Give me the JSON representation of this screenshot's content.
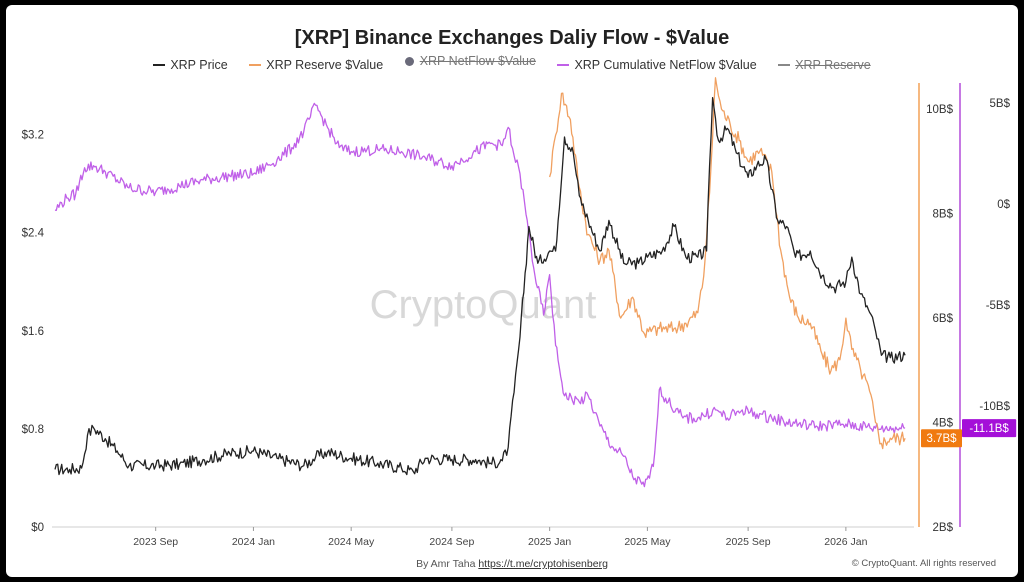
{
  "chart_data": {
    "type": "line",
    "title": "[XRP] Binance Exchanges Daliy Flow - $Value",
    "watermark": "CryptoQuant",
    "legend": [
      {
        "name": "XRP Price",
        "color": "#222222",
        "marker": "line",
        "hidden": false
      },
      {
        "name": "XRP Reserve $Value",
        "color": "#f0a060",
        "marker": "line",
        "hidden": false
      },
      {
        "name": "XRP NetFlow $Value",
        "color": "#6a6a7a",
        "marker": "dot",
        "hidden": true
      },
      {
        "name": "XRP Cumulative NetFlow $Value",
        "color": "#c060e8",
        "marker": "line",
        "hidden": false
      },
      {
        "name": "XRP Reserve",
        "color": "#888888",
        "marker": "line",
        "hidden": true
      }
    ],
    "x_tick_labels": [
      "2023 Sep",
      "2024 Jan",
      "2024 May",
      "2024 Sep",
      "2025 Jan",
      "2025 May",
      "2025 Sep",
      "2026 Jan"
    ],
    "x_tick_positions": [
      2023.67,
      2024.0,
      2024.33,
      2024.67,
      2025.0,
      2025.33,
      2025.67,
      2026.0
    ],
    "xlim": [
      2023.32,
      2026.23
    ],
    "axes": {
      "price": {
        "side": "left",
        "ylim": [
          0,
          3.62
        ],
        "ticks": [
          0,
          0.8,
          1.6,
          2.4,
          3.2
        ],
        "tick_labels": [
          "$0",
          "$0.8",
          "$1.6",
          "$2.4",
          "$3.2"
        ]
      },
      "reserve": {
        "side": "right",
        "color": "#f08a2c",
        "ylim": [
          2,
          10.5
        ],
        "ticks": [
          2,
          4,
          6,
          8,
          10
        ],
        "tick_labels": [
          "2B$",
          "4B$",
          "6B$",
          "8B$",
          "10B$"
        ],
        "last_value_label": "3.7B$"
      },
      "cumulative": {
        "side": "right-outer",
        "color": "#a020d0",
        "ylim": [
          -16,
          6
        ],
        "ticks": [
          -10,
          -5,
          0,
          5
        ],
        "tick_labels": [
          "-10B$",
          "-5B$",
          "0$",
          "5B$"
        ],
        "last_value_label": "-11.1B$"
      }
    },
    "series": [
      {
        "name": "XRP Price",
        "axis": "price",
        "color": "#222222",
        "points": [
          [
            2023.33,
            0.47
          ],
          [
            2023.38,
            0.47
          ],
          [
            2023.42,
            0.48
          ],
          [
            2023.44,
            0.75
          ],
          [
            2023.46,
            0.81
          ],
          [
            2023.5,
            0.72
          ],
          [
            2023.54,
            0.62
          ],
          [
            2023.58,
            0.5
          ],
          [
            2023.67,
            0.5
          ],
          [
            2023.75,
            0.51
          ],
          [
            2023.83,
            0.55
          ],
          [
            2023.92,
            0.6
          ],
          [
            2024.0,
            0.62
          ],
          [
            2024.08,
            0.56
          ],
          [
            2024.17,
            0.5
          ],
          [
            2024.21,
            0.57
          ],
          [
            2024.25,
            0.61
          ],
          [
            2024.33,
            0.56
          ],
          [
            2024.42,
            0.52
          ],
          [
            2024.5,
            0.48
          ],
          [
            2024.54,
            0.45
          ],
          [
            2024.58,
            0.56
          ],
          [
            2024.67,
            0.55
          ],
          [
            2024.75,
            0.55
          ],
          [
            2024.8,
            0.52
          ],
          [
            2024.84,
            0.54
          ],
          [
            2024.86,
            0.65
          ],
          [
            2024.88,
            1.1
          ],
          [
            2024.9,
            1.55
          ],
          [
            2024.93,
            2.45
          ],
          [
            2024.96,
            2.15
          ],
          [
            2025.0,
            2.25
          ],
          [
            2025.02,
            2.25
          ],
          [
            2025.05,
            3.18
          ],
          [
            2025.08,
            3.05
          ],
          [
            2025.1,
            2.7
          ],
          [
            2025.13,
            2.5
          ],
          [
            2025.17,
            2.25
          ],
          [
            2025.2,
            2.5
          ],
          [
            2025.25,
            2.15
          ],
          [
            2025.3,
            2.15
          ],
          [
            2025.33,
            2.2
          ],
          [
            2025.38,
            2.25
          ],
          [
            2025.42,
            2.45
          ],
          [
            2025.46,
            2.2
          ],
          [
            2025.5,
            2.2
          ],
          [
            2025.53,
            2.25
          ],
          [
            2025.54,
            2.95
          ],
          [
            2025.55,
            3.5
          ],
          [
            2025.57,
            3.15
          ],
          [
            2025.6,
            3.25
          ],
          [
            2025.63,
            3.05
          ],
          [
            2025.67,
            2.85
          ],
          [
            2025.7,
            2.95
          ],
          [
            2025.73,
            3.0
          ],
          [
            2025.77,
            2.5
          ],
          [
            2025.8,
            2.45
          ],
          [
            2025.83,
            2.2
          ],
          [
            2025.88,
            2.25
          ],
          [
            2025.92,
            2.05
          ],
          [
            2025.96,
            1.95
          ],
          [
            2026.0,
            2.0
          ],
          [
            2026.02,
            2.2
          ],
          [
            2026.05,
            1.9
          ],
          [
            2026.08,
            1.75
          ],
          [
            2026.1,
            1.6
          ],
          [
            2026.12,
            1.4
          ],
          [
            2026.15,
            1.38
          ],
          [
            2026.2,
            1.4
          ]
        ]
      },
      {
        "name": "XRP Reserve $Value",
        "axis": "reserve",
        "color": "#f0a060",
        "points": [
          [
            2025.0,
            8.7
          ],
          [
            2025.02,
            9.5
          ],
          [
            2025.04,
            10.3
          ],
          [
            2025.07,
            9.8
          ],
          [
            2025.1,
            8.5
          ],
          [
            2025.13,
            7.6
          ],
          [
            2025.17,
            7.1
          ],
          [
            2025.2,
            7.3
          ],
          [
            2025.24,
            6.0
          ],
          [
            2025.28,
            6.4
          ],
          [
            2025.32,
            5.7
          ],
          [
            2025.37,
            5.8
          ],
          [
            2025.42,
            5.8
          ],
          [
            2025.46,
            5.9
          ],
          [
            2025.5,
            6.1
          ],
          [
            2025.52,
            6.8
          ],
          [
            2025.54,
            8.4
          ],
          [
            2025.56,
            10.6
          ],
          [
            2025.58,
            10.0
          ],
          [
            2025.61,
            9.7
          ],
          [
            2025.64,
            9.4
          ],
          [
            2025.67,
            9.0
          ],
          [
            2025.71,
            9.2
          ],
          [
            2025.75,
            8.8
          ],
          [
            2025.78,
            7.3
          ],
          [
            2025.81,
            6.4
          ],
          [
            2025.84,
            6.0
          ],
          [
            2025.88,
            5.9
          ],
          [
            2025.92,
            5.3
          ],
          [
            2025.95,
            5.0
          ],
          [
            2025.98,
            5.2
          ],
          [
            2026.0,
            6.0
          ],
          [
            2026.02,
            5.4
          ],
          [
            2026.05,
            5.0
          ],
          [
            2026.08,
            4.6
          ],
          [
            2026.1,
            4.0
          ],
          [
            2026.12,
            3.6
          ],
          [
            2026.15,
            3.7
          ],
          [
            2026.2,
            3.7
          ]
        ]
      },
      {
        "name": "XRP Cumulative NetFlow $Value",
        "axis": "cumulative",
        "color": "#c060e8",
        "points": [
          [
            2023.33,
            -0.3
          ],
          [
            2023.37,
            0.3
          ],
          [
            2023.4,
            0.5
          ],
          [
            2023.43,
            1.8
          ],
          [
            2023.46,
            1.9
          ],
          [
            2023.5,
            1.6
          ],
          [
            2023.58,
            0.8
          ],
          [
            2023.67,
            0.6
          ],
          [
            2023.75,
            0.9
          ],
          [
            2023.83,
            1.2
          ],
          [
            2023.92,
            1.4
          ],
          [
            2024.0,
            1.5
          ],
          [
            2024.08,
            2.2
          ],
          [
            2024.13,
            2.8
          ],
          [
            2024.17,
            3.6
          ],
          [
            2024.21,
            4.9
          ],
          [
            2024.25,
            3.8
          ],
          [
            2024.29,
            2.8
          ],
          [
            2024.33,
            2.6
          ],
          [
            2024.42,
            2.7
          ],
          [
            2024.5,
            2.6
          ],
          [
            2024.58,
            2.3
          ],
          [
            2024.67,
            1.9
          ],
          [
            2024.75,
            2.6
          ],
          [
            2024.8,
            3.0
          ],
          [
            2024.84,
            2.9
          ],
          [
            2024.86,
            3.8
          ],
          [
            2024.88,
            2.4
          ],
          [
            2024.9,
            1.5
          ],
          [
            2024.92,
            -0.5
          ],
          [
            2024.95,
            -3.5
          ],
          [
            2024.98,
            -5.5
          ],
          [
            2025.0,
            -3.5
          ],
          [
            2025.02,
            -7.0
          ],
          [
            2025.05,
            -9.5
          ],
          [
            2025.1,
            -9.8
          ],
          [
            2025.13,
            -9.5
          ],
          [
            2025.17,
            -11.0
          ],
          [
            2025.21,
            -12.0
          ],
          [
            2025.25,
            -12.5
          ],
          [
            2025.28,
            -13.5
          ],
          [
            2025.32,
            -14.0
          ],
          [
            2025.35,
            -13.0
          ],
          [
            2025.37,
            -9.2
          ],
          [
            2025.4,
            -9.8
          ],
          [
            2025.45,
            -10.6
          ],
          [
            2025.5,
            -10.6
          ],
          [
            2025.56,
            -10.2
          ],
          [
            2025.6,
            -10.6
          ],
          [
            2025.65,
            -10.2
          ],
          [
            2025.7,
            -10.4
          ],
          [
            2025.75,
            -10.6
          ],
          [
            2025.8,
            -10.8
          ],
          [
            2025.9,
            -11.0
          ],
          [
            2026.0,
            -10.9
          ],
          [
            2026.1,
            -11.1
          ],
          [
            2026.2,
            -11.1
          ]
        ]
      }
    ]
  },
  "footer": {
    "author_prefix": "By Amr Taha",
    "author_link": "https://t.me/cryptohisenberg",
    "copyright": "© CryptoQuant. All rights reserved"
  }
}
